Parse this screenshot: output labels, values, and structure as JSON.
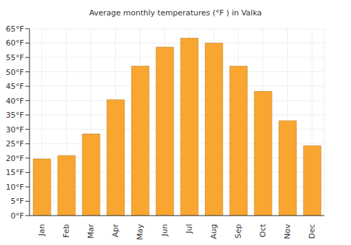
{
  "chart_data": {
    "type": "bar",
    "title": "Average monthly temperatures (°F ) in Valka",
    "categories": [
      "Jan",
      "Feb",
      "Mar",
      "Apr",
      "May",
      "Jun",
      "Jul",
      "Aug",
      "Sep",
      "Oct",
      "Nov",
      "Dec"
    ],
    "values": [
      19.7,
      20.9,
      28.4,
      40.3,
      52,
      58.6,
      61.7,
      60,
      52,
      43.2,
      33,
      24.3
    ],
    "color": "#f9a630",
    "ylim": [
      0,
      65
    ],
    "yticks": [
      {
        "value": 0,
        "label": "0°F"
      },
      {
        "value": 5,
        "label": "5°F"
      },
      {
        "value": 10,
        "label": "10°F"
      },
      {
        "value": 15,
        "label": "15°F"
      },
      {
        "value": 20,
        "label": "20°F"
      },
      {
        "value": 25,
        "label": "25°F"
      },
      {
        "value": 30,
        "label": "30°F"
      },
      {
        "value": 35,
        "label": "35°F"
      },
      {
        "value": 40,
        "label": "40°F"
      },
      {
        "value": 45,
        "label": "45°F"
      },
      {
        "value": 50,
        "label": "50°F"
      },
      {
        "value": 55,
        "label": "55°F"
      },
      {
        "value": 60,
        "label": "60°F"
      },
      {
        "value": 65,
        "label": "65°F"
      }
    ],
    "grid": true
  }
}
